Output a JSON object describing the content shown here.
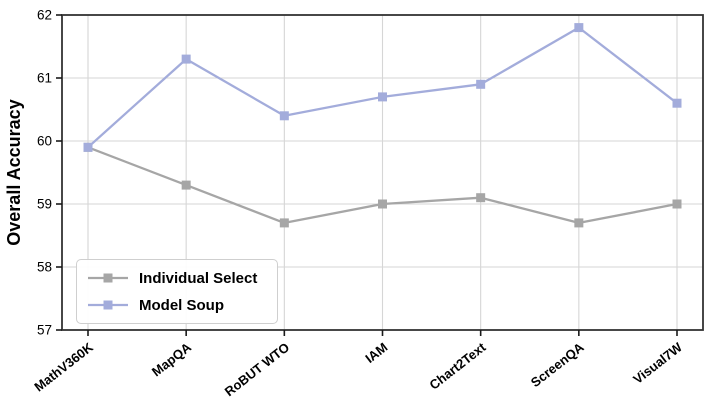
{
  "figure": {
    "ylabel": "Overall Accuracy",
    "colors": {
      "individual_select": "#a6a6a6",
      "model_soup": "#a3acdb",
      "grid": "#d6d6d6",
      "spine": "#333333",
      "tick": "#1a1a1a",
      "text": "#000000",
      "legend_border": "#cfcfcf"
    }
  },
  "legend": {
    "items": [
      {
        "label": "Individual Select",
        "color": "#a6a6a6"
      },
      {
        "label": "Model Soup",
        "color": "#a3acdb"
      }
    ]
  },
  "chart_data": {
    "type": "line",
    "title": "",
    "xlabel": "",
    "ylabel": "Overall Accuracy",
    "categories": [
      "MathV360K",
      "MapQA",
      "RoBUT WTO",
      "IAM",
      "Chart2Text",
      "ScreenQA",
      "Visual7W"
    ],
    "series": [
      {
        "name": "Individual Select",
        "color": "#a6a6a6",
        "marker": "square",
        "values": [
          59.9,
          59.3,
          58.7,
          59.0,
          59.1,
          58.7,
          59.0
        ]
      },
      {
        "name": "Model Soup",
        "color": "#a3acdb",
        "marker": "square",
        "values": [
          59.9,
          61.3,
          60.4,
          60.7,
          60.9,
          61.8,
          60.6
        ]
      }
    ],
    "ylim": [
      57,
      62
    ],
    "yticks": [
      57,
      58,
      59,
      60,
      61,
      62
    ],
    "grid": true,
    "legend_position": "lower left",
    "xtick_rotation": 38
  }
}
